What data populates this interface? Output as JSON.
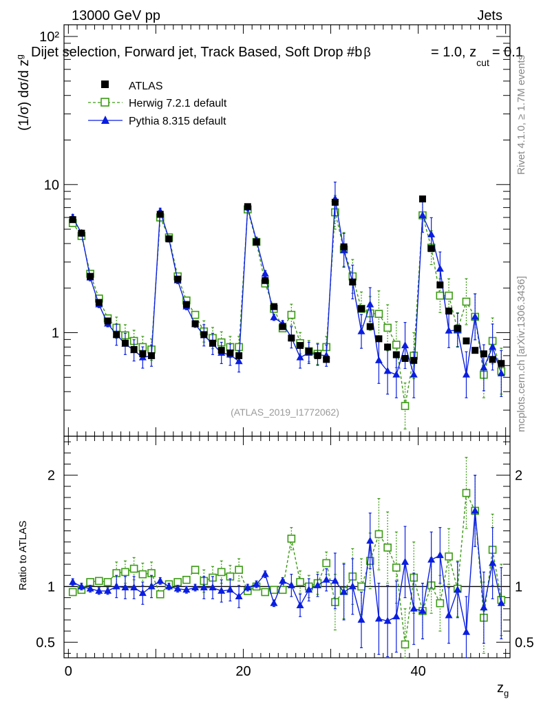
{
  "header": {
    "energy_label": "13000 GeV pp",
    "category_label": "Jets",
    "plot_title": "Dijet selection, Forward jet, Track Based, Soft Drop #b",
    "title_tail_beta": "= 1.0, z",
    "title_tail_sub": "cut",
    "title_tail_val": "= 0.1",
    "beta_symbol": "β",
    "analysis_id": "(ATLAS_2019_I1772062)"
  },
  "side_labels": {
    "rivet": "Rivet 4.1.0, ≥ 1.7M events",
    "mcplots": "mcplots.cern.ch [arXiv:1306.3436]"
  },
  "axes": {
    "main_ylabel": "(1/σ) dσ/d z",
    "main_ylabel_sub": "g",
    "ratio_ylabel": "Ratio to ATLAS",
    "xlabel": "z",
    "xlabel_sub": "g"
  },
  "legend": [
    {
      "name": "ATLAS",
      "style": "data"
    },
    {
      "name": "Herwig 7.2.1 default",
      "style": "herwig"
    },
    {
      "name": "Pythia 8.315 default",
      "style": "pythia"
    }
  ],
  "colors": {
    "data": "#000000",
    "herwig": "#3a9a12",
    "pythia": "#0a1ee0"
  },
  "chart_data": [
    {
      "type": "scatter",
      "panel": "main",
      "yscale": "log",
      "xlim": [
        -0.5,
        50.5
      ],
      "ylim": [
        0.2,
        120
      ],
      "xticks": [
        0,
        20,
        40
      ],
      "yticks": [
        1,
        10,
        100
      ],
      "ytick_labels": [
        "1",
        "10",
        "10²"
      ],
      "x": [
        0.5,
        1.5,
        2.5,
        3.5,
        4.5,
        5.5,
        6.5,
        7.5,
        8.5,
        9.5,
        10.5,
        11.5,
        12.5,
        13.5,
        14.5,
        15.5,
        16.5,
        17.5,
        18.5,
        19.5,
        20.5,
        21.5,
        22.5,
        23.5,
        24.5,
        25.5,
        26.5,
        27.5,
        28.5,
        29.5,
        30.5,
        31.5,
        32.5,
        33.5,
        34.5,
        35.5,
        36.5,
        37.5,
        38.5,
        39.5,
        40.5,
        41.5,
        42.5,
        43.5,
        44.5,
        45.5,
        46.5,
        47.5,
        48.5,
        49.5
      ],
      "series": [
        {
          "name": "ATLAS",
          "values": [
            5.8,
            4.7,
            2.4,
            1.6,
            1.2,
            0.97,
            0.85,
            0.77,
            0.72,
            0.7,
            6.3,
            4.3,
            2.3,
            1.55,
            1.15,
            0.97,
            0.85,
            0.76,
            0.73,
            0.7,
            7.1,
            4.1,
            2.25,
            1.5,
            1.1,
            0.92,
            0.82,
            0.75,
            0.7,
            0.66,
            7.6,
            3.8,
            2.2,
            1.45,
            1.1,
            0.91,
            0.8,
            0.71,
            0.67,
            0.65,
            8.0,
            3.7,
            2.1,
            1.4,
            1.07,
            0.88,
            0.76,
            0.72,
            0.66,
            0.62
          ]
        },
        {
          "name": "Herwig 7.2.1 default",
          "values": [
            5.5,
            4.5,
            2.5,
            1.7,
            1.25,
            1.08,
            0.96,
            0.88,
            0.8,
            0.77,
            6.0,
            4.4,
            2.4,
            1.65,
            1.32,
            1.02,
            0.92,
            0.86,
            0.8,
            0.8,
            6.8,
            4.1,
            2.15,
            1.45,
            1.07,
            1.32,
            0.85,
            0.75,
            0.72,
            0.8,
            6.5,
            3.65,
            2.4,
            1.45,
            1.35,
            1.34,
            1.08,
            0.83,
            0.32,
            0.7,
            6.2,
            3.75,
            1.78,
            1.78,
            1.05,
            1.62,
            1.28,
            0.52,
            0.88,
            0.55
          ]
        },
        {
          "name": "Pythia 8.315 default",
          "values": [
            6.0,
            4.7,
            2.35,
            1.55,
            1.15,
            0.97,
            0.84,
            0.76,
            0.68,
            0.7,
            6.6,
            4.3,
            2.25,
            1.5,
            1.14,
            0.96,
            0.84,
            0.73,
            0.71,
            0.64,
            7.0,
            4.2,
            2.5,
            1.27,
            1.15,
            0.93,
            0.68,
            0.73,
            0.71,
            0.7,
            8.0,
            3.6,
            2.2,
            1.02,
            1.55,
            0.65,
            0.55,
            0.52,
            0.82,
            0.52,
            6.2,
            4.6,
            2.7,
            1.03,
            1.04,
            0.52,
            1.28,
            0.58,
            0.8,
            0.53
          ]
        }
      ]
    },
    {
      "type": "scatter",
      "panel": "ratio",
      "xlim": [
        -0.5,
        50.5
      ],
      "ylim": [
        0.36,
        2.35
      ],
      "xticks": [
        0,
        20,
        40
      ],
      "yticks": [
        0.5,
        1,
        2
      ],
      "reference_line": 1,
      "x": [
        0.5,
        1.5,
        2.5,
        3.5,
        4.5,
        5.5,
        6.5,
        7.5,
        8.5,
        9.5,
        10.5,
        11.5,
        12.5,
        13.5,
        14.5,
        15.5,
        16.5,
        17.5,
        18.5,
        19.5,
        20.5,
        21.5,
        22.5,
        23.5,
        24.5,
        25.5,
        26.5,
        27.5,
        28.5,
        29.5,
        30.5,
        31.5,
        32.5,
        33.5,
        34.5,
        35.5,
        36.5,
        37.5,
        38.5,
        39.5,
        40.5,
        41.5,
        42.5,
        43.5,
        44.5,
        45.5,
        46.5,
        47.5,
        48.5,
        49.5
      ],
      "series": [
        {
          "name": "Herwig 7.2.1 default",
          "values": [
            0.95,
            0.97,
            1.04,
            1.05,
            1.04,
            1.12,
            1.13,
            1.16,
            1.11,
            1.12,
            0.93,
            1.02,
            1.04,
            1.06,
            1.15,
            1.05,
            1.08,
            1.13,
            1.09,
            1.15,
            0.96,
            1.0,
            0.95,
            0.97,
            0.97,
            1.43,
            1.04,
            1.0,
            1.03,
            1.21,
            0.86,
            0.96,
            1.09,
            1.0,
            1.23,
            1.47,
            1.35,
            1.17,
            0.48,
            1.08,
            0.78,
            1.01,
            0.85,
            1.27,
            0.98,
            1.84,
            1.68,
            0.72,
            1.33,
            0.88
          ]
        },
        {
          "name": "Pythia 8.315 default",
          "values": [
            1.04,
            1.0,
            0.98,
            0.96,
            0.96,
            1.0,
            0.99,
            0.99,
            0.94,
            1.0,
            1.05,
            1.0,
            0.98,
            0.97,
            0.99,
            0.99,
            0.99,
            0.96,
            0.97,
            0.91,
            0.99,
            1.02,
            1.11,
            0.85,
            1.05,
            1.01,
            0.83,
            0.97,
            1.01,
            1.06,
            1.05,
            0.95,
            1.0,
            0.7,
            1.41,
            0.71,
            0.69,
            0.73,
            1.22,
            0.8,
            0.78,
            1.24,
            1.28,
            0.74,
            0.97,
            0.59,
            1.68,
            0.81,
            1.21,
            0.85
          ]
        }
      ]
    }
  ]
}
